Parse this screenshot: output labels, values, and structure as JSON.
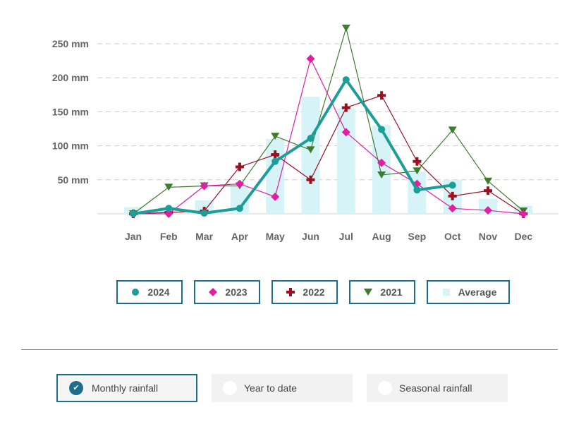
{
  "chart_data": {
    "type": "line",
    "categories": [
      "Jan",
      "Feb",
      "Mar",
      "Apr",
      "May",
      "Jun",
      "Jul",
      "Aug",
      "Sep",
      "Oct",
      "Nov",
      "Dec"
    ],
    "ylim": [
      0,
      250
    ],
    "yticks": [
      {
        "value": 50,
        "label": "50 mm"
      },
      {
        "value": 100,
        "label": "100 mm"
      },
      {
        "value": 150,
        "label": "150 mm"
      },
      {
        "value": 200,
        "label": "200 mm"
      },
      {
        "value": 250,
        "label": "250 mm"
      }
    ],
    "average": {
      "name": "Average",
      "color": "#d6f3f7",
      "values": [
        10,
        10,
        20,
        40,
        110,
        172,
        155,
        130,
        62,
        50,
        22,
        12
      ]
    },
    "series": [
      {
        "name": "2021",
        "color": "#3e7c2e",
        "marker": "triangle-down",
        "values": [
          0,
          39,
          41,
          41,
          114,
          94,
          273,
          57,
          63,
          123,
          48,
          4
        ]
      },
      {
        "name": "2022",
        "color": "#9b1020",
        "marker": "plus",
        "values": [
          0,
          2,
          4,
          69,
          87,
          50,
          156,
          174,
          77,
          26,
          34,
          0
        ]
      },
      {
        "name": "2023",
        "color": "#e01fa3",
        "marker": "diamond",
        "values": [
          0,
          0,
          41,
          44,
          25,
          228,
          120,
          75,
          44,
          8,
          5,
          0
        ]
      },
      {
        "name": "2024",
        "color": "#1a9e97",
        "marker": "circle",
        "values": [
          0,
          8,
          1,
          8,
          77,
          111,
          197,
          124,
          35,
          42,
          null,
          null
        ]
      }
    ]
  },
  "legend": [
    {
      "label": "2024",
      "color": "#1a9e97",
      "marker": "circle"
    },
    {
      "label": "2023",
      "color": "#e01fa3",
      "marker": "diamond"
    },
    {
      "label": "2022",
      "color": "#9b1020",
      "marker": "plus"
    },
    {
      "label": "2021",
      "color": "#3e7c2e",
      "marker": "triangle-down"
    },
    {
      "label": "Average",
      "color": "#d6f3f7",
      "marker": "square"
    }
  ],
  "options": [
    {
      "label": "Monthly rainfall",
      "selected": true
    },
    {
      "label": "Year to date",
      "selected": false
    },
    {
      "label": "Seasonal rainfall",
      "selected": false
    }
  ]
}
